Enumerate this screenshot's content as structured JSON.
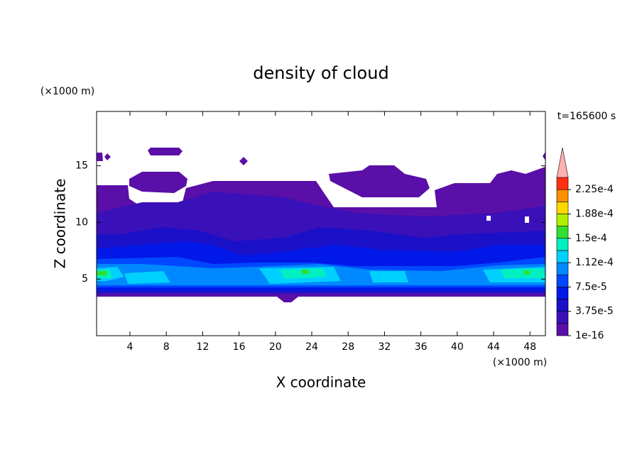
{
  "chart_data": {
    "type": "contour",
    "title": "density of cloud",
    "x_label": "X coordinate",
    "y_label": "Z coordinate",
    "x_unit": "(×1000 m)",
    "y_unit": "(×1000 m)",
    "annotation": "t=165600 s",
    "xlim": [
      0.33,
      49.7
    ],
    "ylim": [
      0,
      19.8
    ],
    "xticks": [
      4,
      8,
      12,
      16,
      20,
      24,
      28,
      32,
      36,
      40,
      44,
      48
    ],
    "yticks": [
      5,
      10,
      15
    ],
    "levels": [
      1e-16,
      1.875e-05,
      3.75e-05,
      5.625e-05,
      7.5e-05,
      9.375e-05,
      0.0001125,
      0.00013125,
      0.00015,
      0.00016875,
      0.0001875,
      0.00020625,
      0.000225,
      0.00024375
    ],
    "colors": [
      "#5a0fa8",
      "#3a10b8",
      "#1a10c8",
      "#0018e8",
      "#0048ff",
      "#0088ff",
      "#00d0ff",
      "#00f0c0",
      "#30e030",
      "#b0f000",
      "#ffd800",
      "#ff9000",
      "#ff3010"
    ],
    "extend_color": "#ffb0b0",
    "colorbar_ticks": [
      {
        "value": 1e-16,
        "label": "1e-16"
      },
      {
        "value": 3.75e-05,
        "label": "3.75e-5"
      },
      {
        "value": 7.5e-05,
        "label": "7.5e-5"
      },
      {
        "value": 0.0001125,
        "label": "1.12e-4"
      },
      {
        "value": 0.00015,
        "label": "1.5e-4"
      },
      {
        "value": 0.0001875,
        "label": "1.88e-4"
      },
      {
        "value": 0.000225,
        "label": "2.25e-4"
      }
    ]
  }
}
